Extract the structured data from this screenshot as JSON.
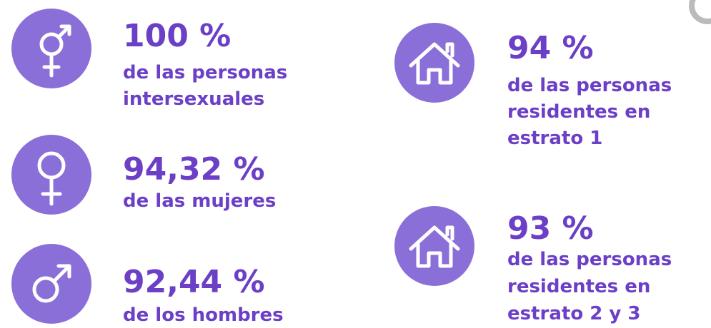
{
  "items": [
    {
      "value": "100 %",
      "lines": [
        "de las personas",
        "intersexuales"
      ]
    },
    {
      "value": "94,32 %",
      "lines": [
        "de las mujeres"
      ]
    },
    {
      "value": "92,44 %",
      "lines": [
        "de los hombres"
      ]
    },
    {
      "value": "94 %",
      "lines": [
        "de las personas",
        "residentes en",
        "estrato 1"
      ]
    },
    {
      "value": "93 %",
      "lines": [
        "de las personas",
        "residentes en",
        "estrato 2 y 3"
      ]
    }
  ]
}
